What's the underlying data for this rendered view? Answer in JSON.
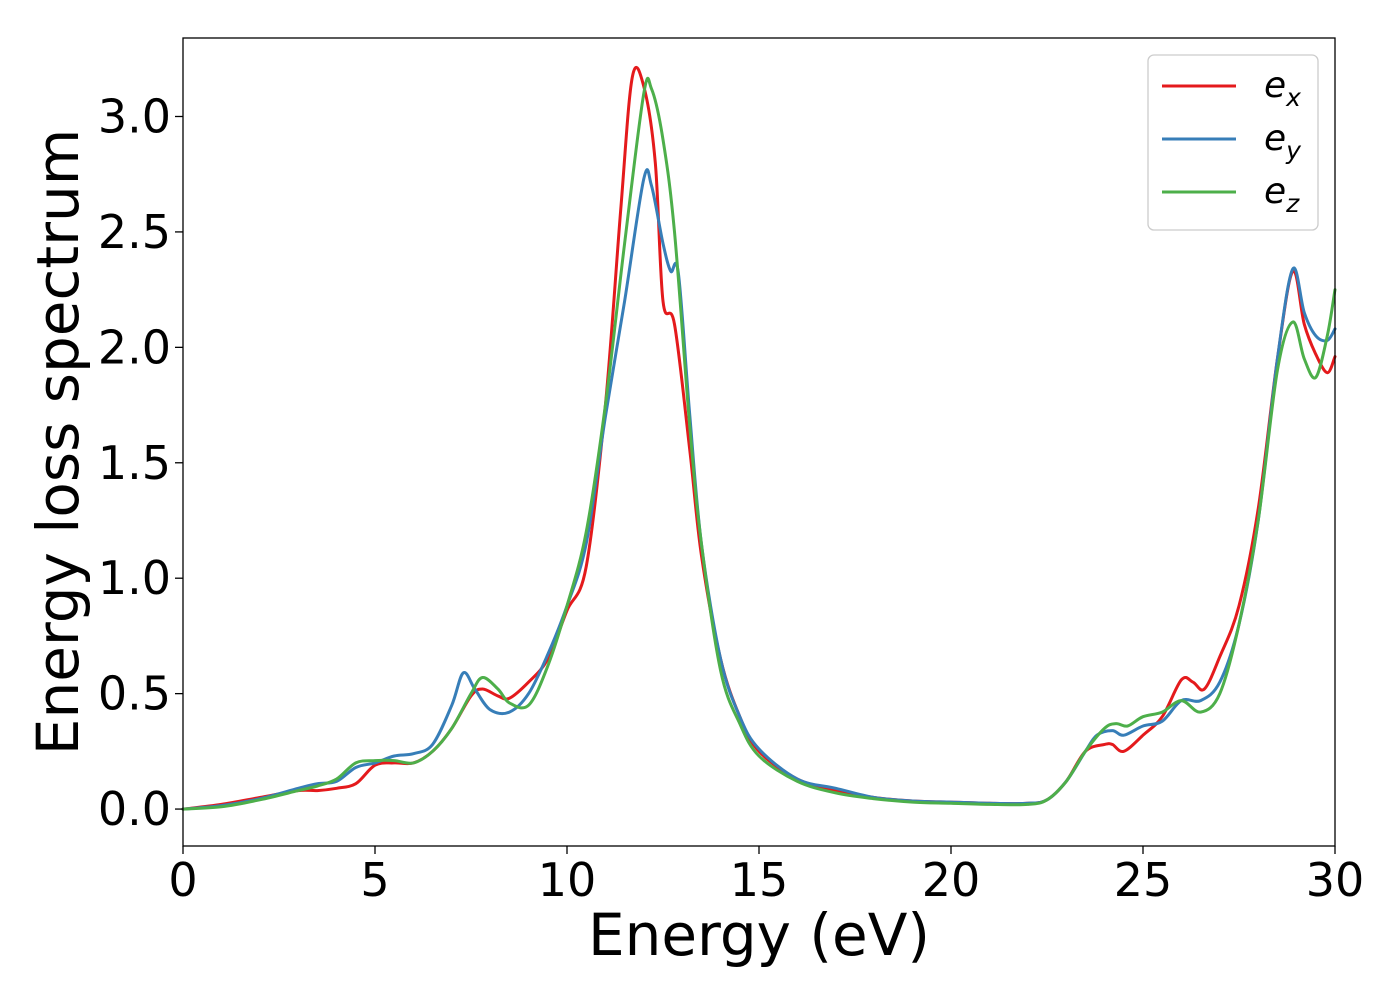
{
  "chart_data": {
    "type": "line",
    "title": "",
    "xlabel": "Energy (eV)",
    "ylabel": "Energy loss spectrum",
    "xlim": [
      0,
      30
    ],
    "ylim": [
      -0.16,
      3.34
    ],
    "xticks": [
      0,
      5,
      10,
      15,
      20,
      25,
      30
    ],
    "xtick_labels": [
      "0",
      "5",
      "10",
      "15",
      "20",
      "25",
      "30"
    ],
    "yticks": [
      0.0,
      0.5,
      1.0,
      1.5,
      2.0,
      2.5,
      3.0
    ],
    "ytick_labels": [
      "0.0",
      "0.5",
      "1.0",
      "1.5",
      "2.0",
      "2.5",
      "3.0"
    ],
    "grid": false,
    "legend_position": "top-right",
    "series": [
      {
        "name": "e",
        "subscript": "x",
        "color": "#e41a1c",
        "points": [
          [
            0,
            0
          ],
          [
            1,
            0.02
          ],
          [
            2,
            0.05
          ],
          [
            3,
            0.08
          ],
          [
            3.5,
            0.08
          ],
          [
            4,
            0.09
          ],
          [
            4.5,
            0.11
          ],
          [
            5,
            0.19
          ],
          [
            5.5,
            0.2
          ],
          [
            6,
            0.2
          ],
          [
            6.5,
            0.25
          ],
          [
            7,
            0.35
          ],
          [
            7.5,
            0.49
          ],
          [
            7.8,
            0.52
          ],
          [
            8.2,
            0.49
          ],
          [
            8.5,
            0.48
          ],
          [
            9,
            0.55
          ],
          [
            9.5,
            0.65
          ],
          [
            10,
            0.86
          ],
          [
            10.5,
            1.05
          ],
          [
            11,
            1.75
          ],
          [
            11.4,
            2.6
          ],
          [
            11.7,
            3.17
          ],
          [
            12,
            3.13
          ],
          [
            12.3,
            2.8
          ],
          [
            12.5,
            2.2
          ],
          [
            12.8,
            2.1
          ],
          [
            13.2,
            1.55
          ],
          [
            13.5,
            1.1
          ],
          [
            14,
            0.65
          ],
          [
            14.5,
            0.4
          ],
          [
            15,
            0.25
          ],
          [
            16,
            0.13
          ],
          [
            17,
            0.08
          ],
          [
            18,
            0.05
          ],
          [
            19,
            0.035
          ],
          [
            20,
            0.03
          ],
          [
            21,
            0.025
          ],
          [
            22,
            0.025
          ],
          [
            22.5,
            0.04
          ],
          [
            23,
            0.12
          ],
          [
            23.5,
            0.25
          ],
          [
            24,
            0.28
          ],
          [
            24.2,
            0.28
          ],
          [
            24.5,
            0.25
          ],
          [
            25,
            0.32
          ],
          [
            25.5,
            0.4
          ],
          [
            26,
            0.56
          ],
          [
            26.3,
            0.55
          ],
          [
            26.6,
            0.52
          ],
          [
            27,
            0.66
          ],
          [
            27.5,
            0.88
          ],
          [
            28,
            1.3
          ],
          [
            28.5,
            1.95
          ],
          [
            28.9,
            2.33
          ],
          [
            29.2,
            2.1
          ],
          [
            29.5,
            1.97
          ],
          [
            29.8,
            1.89
          ],
          [
            30,
            1.96
          ]
        ]
      },
      {
        "name": "e",
        "subscript": "y",
        "color": "#377eb8",
        "points": [
          [
            0,
            0
          ],
          [
            1,
            0.015
          ],
          [
            2,
            0.045
          ],
          [
            3,
            0.09
          ],
          [
            3.5,
            0.11
          ],
          [
            4,
            0.12
          ],
          [
            4.5,
            0.18
          ],
          [
            5,
            0.2
          ],
          [
            5.5,
            0.23
          ],
          [
            6,
            0.24
          ],
          [
            6.5,
            0.28
          ],
          [
            7,
            0.45
          ],
          [
            7.3,
            0.59
          ],
          [
            7.6,
            0.52
          ],
          [
            8,
            0.43
          ],
          [
            8.5,
            0.42
          ],
          [
            9,
            0.5
          ],
          [
            9.5,
            0.67
          ],
          [
            10,
            0.88
          ],
          [
            10.5,
            1.15
          ],
          [
            11,
            1.7
          ],
          [
            11.5,
            2.2
          ],
          [
            12,
            2.73
          ],
          [
            12.2,
            2.7
          ],
          [
            12.5,
            2.45
          ],
          [
            12.7,
            2.33
          ],
          [
            12.9,
            2.32
          ],
          [
            13.2,
            1.7
          ],
          [
            13.5,
            1.15
          ],
          [
            14,
            0.65
          ],
          [
            14.5,
            0.4
          ],
          [
            15,
            0.26
          ],
          [
            16,
            0.13
          ],
          [
            17,
            0.09
          ],
          [
            18,
            0.05
          ],
          [
            19,
            0.035
          ],
          [
            20,
            0.03
          ],
          [
            21,
            0.025
          ],
          [
            22,
            0.025
          ],
          [
            22.5,
            0.04
          ],
          [
            23,
            0.12
          ],
          [
            23.5,
            0.25
          ],
          [
            23.8,
            0.32
          ],
          [
            24.2,
            0.34
          ],
          [
            24.5,
            0.32
          ],
          [
            25,
            0.36
          ],
          [
            25.5,
            0.38
          ],
          [
            26,
            0.47
          ],
          [
            26.5,
            0.47
          ],
          [
            27,
            0.55
          ],
          [
            27.5,
            0.8
          ],
          [
            28,
            1.25
          ],
          [
            28.5,
            1.95
          ],
          [
            28.9,
            2.34
          ],
          [
            29.2,
            2.15
          ],
          [
            29.5,
            2.05
          ],
          [
            29.8,
            2.03
          ],
          [
            30,
            2.08
          ]
        ]
      },
      {
        "name": "e",
        "subscript": "z",
        "color": "#4daf4a",
        "points": [
          [
            0,
            0
          ],
          [
            1,
            0.01
          ],
          [
            2,
            0.04
          ],
          [
            3,
            0.08
          ],
          [
            3.5,
            0.1
          ],
          [
            4,
            0.13
          ],
          [
            4.5,
            0.2
          ],
          [
            5,
            0.21
          ],
          [
            5.5,
            0.21
          ],
          [
            6,
            0.2
          ],
          [
            6.5,
            0.25
          ],
          [
            7,
            0.35
          ],
          [
            7.5,
            0.5
          ],
          [
            7.8,
            0.57
          ],
          [
            8.2,
            0.52
          ],
          [
            8.5,
            0.46
          ],
          [
            9,
            0.45
          ],
          [
            9.5,
            0.62
          ],
          [
            10,
            0.88
          ],
          [
            10.5,
            1.2
          ],
          [
            11,
            1.75
          ],
          [
            11.5,
            2.45
          ],
          [
            12,
            3.1
          ],
          [
            12.2,
            3.12
          ],
          [
            12.5,
            2.9
          ],
          [
            12.8,
            2.5
          ],
          [
            13.2,
            1.65
          ],
          [
            13.5,
            1.15
          ],
          [
            14,
            0.6
          ],
          [
            14.5,
            0.37
          ],
          [
            15,
            0.23
          ],
          [
            16,
            0.12
          ],
          [
            17,
            0.07
          ],
          [
            18,
            0.045
          ],
          [
            19,
            0.03
          ],
          [
            20,
            0.025
          ],
          [
            21,
            0.02
          ],
          [
            22,
            0.02
          ],
          [
            22.5,
            0.04
          ],
          [
            23,
            0.12
          ],
          [
            23.5,
            0.25
          ],
          [
            24,
            0.35
          ],
          [
            24.3,
            0.37
          ],
          [
            24.6,
            0.36
          ],
          [
            25,
            0.4
          ],
          [
            25.5,
            0.42
          ],
          [
            26,
            0.47
          ],
          [
            26.5,
            0.42
          ],
          [
            27,
            0.5
          ],
          [
            27.5,
            0.8
          ],
          [
            28,
            1.25
          ],
          [
            28.5,
            1.9
          ],
          [
            28.9,
            2.11
          ],
          [
            29.2,
            1.95
          ],
          [
            29.5,
            1.87
          ],
          [
            29.8,
            2.05
          ],
          [
            30,
            2.25
          ]
        ]
      }
    ]
  }
}
